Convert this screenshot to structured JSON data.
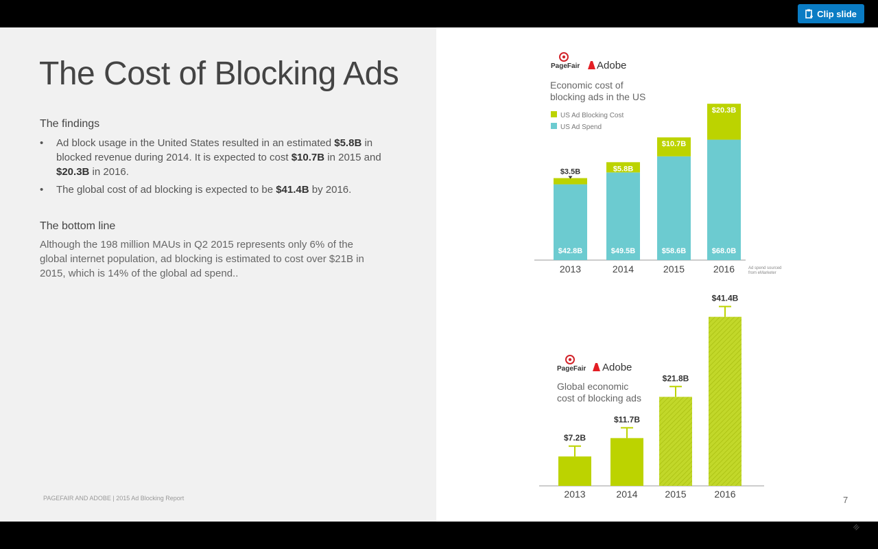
{
  "slide": {
    "title": "The Cost of Blocking Ads",
    "findings_title": "The findings",
    "bullets": [
      {
        "pre": "Ad block usage in the United States resulted in an estimated ",
        "b1": "$5.8B",
        "mid": " in blocked revenue during 2014.  It is expected to cost ",
        "b2": "$10.7B",
        "mid2": " in 2015 and ",
        "b3": "$20.3B",
        "post": " in 2016."
      },
      {
        "pre": "The global cost of ad blocking is expected to be ",
        "b1": "$41.4B",
        "post": " by 2016."
      }
    ],
    "bottomline_title": "The bottom line",
    "bottomline_text": "Although the 198 million MAUs in Q2 2015 represents only 6% of the global internet population, ad blocking is estimated to cost over $21B in 2015, which is 14% of the global ad spend..",
    "footer": "PAGEFAIR AND ADOBE  |  2015 Ad Blocking Report",
    "page_number": "7"
  },
  "toolbar": {
    "clip_label": "Clip slide"
  },
  "brand": {
    "pagefair": "PageFair",
    "adobe": "Adobe"
  },
  "colors": {
    "lime": "#bcd300",
    "teal": "#6ccbd0",
    "adobe_red": "#e31e24"
  },
  "chart_data": [
    {
      "type": "bar",
      "stacked": true,
      "title": "Economic cost of blocking ads in the US",
      "categories": [
        "2013",
        "2014",
        "2015",
        "2016"
      ],
      "series": [
        {
          "name": "US Ad Spend",
          "values": [
            42.8,
            49.5,
            58.6,
            68.0
          ],
          "labels": [
            "$42.8B",
            "$49.5B",
            "$58.6B",
            "$68.0B"
          ]
        },
        {
          "name": "US Ad Blocking Cost",
          "values": [
            3.5,
            5.8,
            10.7,
            20.3
          ],
          "labels": [
            "$3.5B",
            "$5.8B",
            "$10.7B",
            "$20.3B"
          ]
        }
      ],
      "note": "Ad spend sourced from eMarketer",
      "ylim": [
        0,
        90
      ]
    },
    {
      "type": "bar",
      "title": "Global economic cost of blocking ads",
      "categories": [
        "2013",
        "2014",
        "2015",
        "2016"
      ],
      "values": [
        7.2,
        11.7,
        21.8,
        41.4
      ],
      "labels": [
        "$7.2B",
        "$11.7B",
        "$21.8B",
        "$41.4B"
      ],
      "ylim": [
        0,
        45
      ]
    }
  ]
}
